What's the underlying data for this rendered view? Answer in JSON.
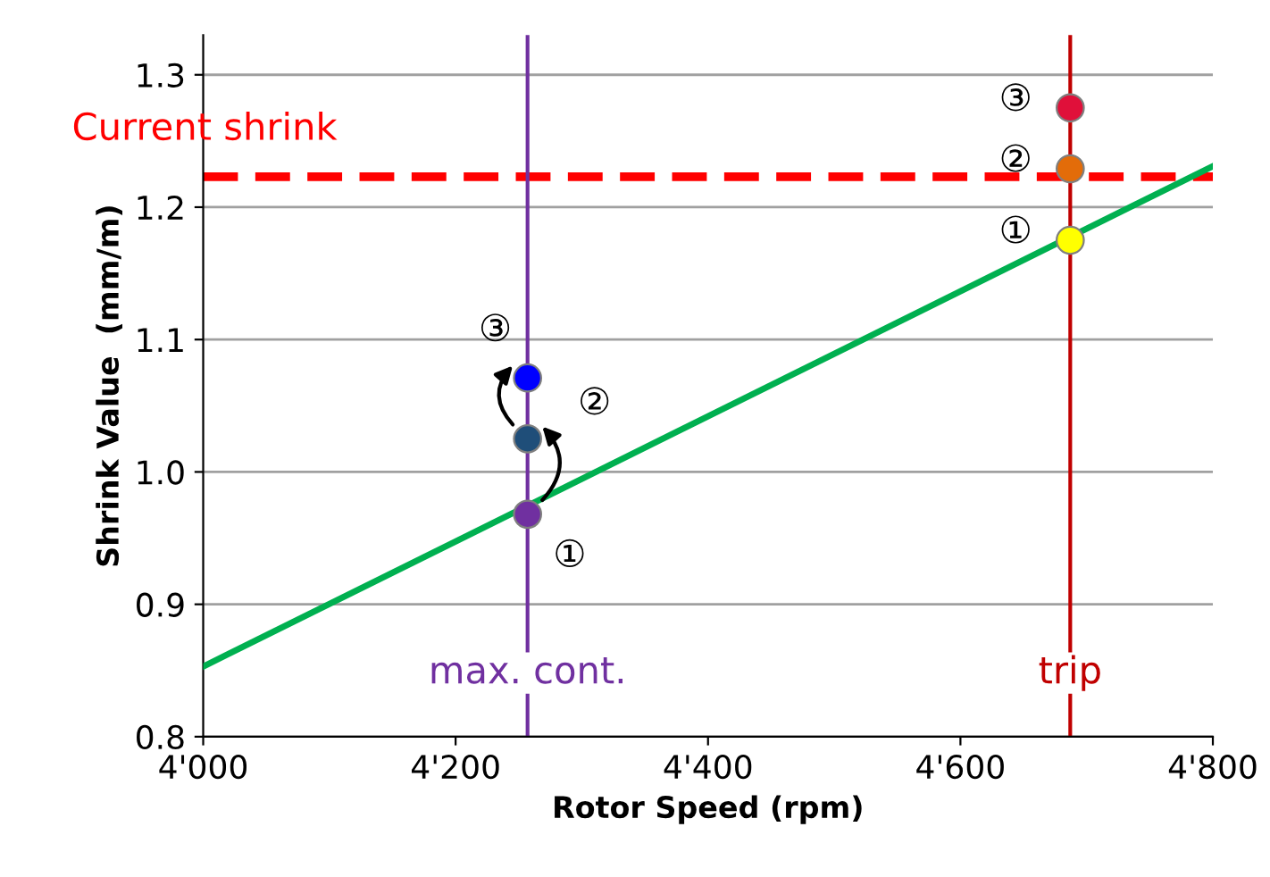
{
  "chart_data": {
    "type": "scatter",
    "xlabel": "Rotor Speed (rpm)",
    "ylabel": "Shrink Value  (mm/m)",
    "xlim": [
      4000,
      4800
    ],
    "ylim": [
      0.8,
      1.33
    ],
    "xticks": [
      {
        "value": 4000,
        "label": "4'000"
      },
      {
        "value": 4200,
        "label": "4'200"
      },
      {
        "value": 4400,
        "label": "4'400"
      },
      {
        "value": 4600,
        "label": "4'600"
      },
      {
        "value": 4800,
        "label": "4'800"
      }
    ],
    "yticks": [
      {
        "value": 0.8,
        "label": "0.8"
      },
      {
        "value": 0.9,
        "label": "0.9"
      },
      {
        "value": 1.0,
        "label": "1.0"
      },
      {
        "value": 1.1,
        "label": "1.1"
      },
      {
        "value": 1.2,
        "label": "1.2"
      },
      {
        "value": 1.3,
        "label": "1.3"
      }
    ],
    "grid": "y",
    "marker": "circle",
    "series": [
      {
        "type": "line",
        "marker": "none",
        "color": "#00b050",
        "x": [
          4000,
          4800
        ],
        "values": [
          0.853,
          1.231
        ]
      },
      {
        "x": [
          4257,
          4257,
          4257
        ],
        "values": [
          0.968,
          1.025,
          1.071
        ],
        "colors": [
          "#7030a0",
          "#1f4e79",
          "#0000ff"
        ]
      },
      {
        "x": [
          4687,
          4687,
          4687
        ],
        "values": [
          1.175,
          1.229,
          1.275
        ],
        "colors": [
          "#ffff00",
          "#e36c09",
          "#e0103a"
        ]
      }
    ],
    "ref_lines": [
      {
        "axis": "y",
        "value": 1.223,
        "label": "Current shrink",
        "color": "#ff0000",
        "line_style": "dashed"
      },
      {
        "axis": "x",
        "value": 4257,
        "label": "max. cont.",
        "color": "#7030a0",
        "line_style": "solid"
      },
      {
        "axis": "x",
        "value": 4687,
        "label": "trip",
        "color": "#c00000",
        "line_style": "solid"
      }
    ],
    "annotations": [
      "①",
      "②",
      "③",
      "①",
      "②",
      "③"
    ]
  }
}
